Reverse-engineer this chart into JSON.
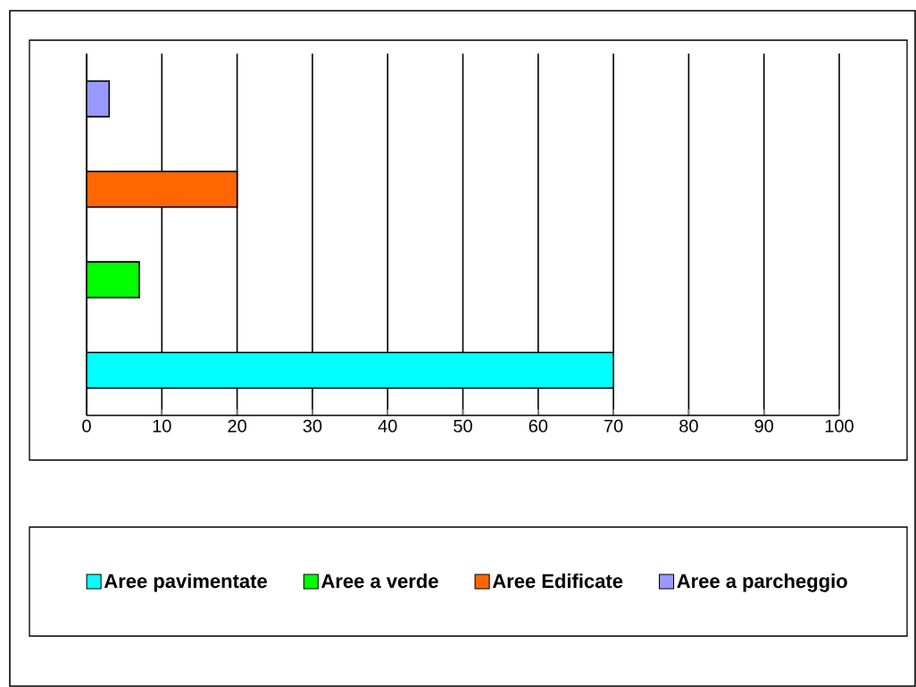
{
  "chart_data": {
    "type": "bar",
    "orientation": "horizontal",
    "categories": [
      null,
      null,
      null,
      null
    ],
    "series": [
      {
        "name": "Aree pavimentate",
        "color": "#00ffff",
        "values": [
          null,
          null,
          null,
          70
        ]
      },
      {
        "name": "Aree a verde",
        "color": "#00ff00",
        "values": [
          null,
          null,
          7,
          null
        ]
      },
      {
        "name": "Aree Edificate",
        "color": "#ff6600",
        "values": [
          null,
          20,
          null,
          null
        ]
      },
      {
        "name": "Aree a parcheggio",
        "color": "#9999ff",
        "values": [
          3,
          null,
          null,
          null
        ]
      }
    ],
    "xlim": [
      0,
      100
    ],
    "xticks": [
      0,
      10,
      20,
      30,
      40,
      50,
      60,
      70,
      80,
      90,
      100
    ],
    "grid": "x",
    "legend": "bottom",
    "tick_labels": "x"
  }
}
